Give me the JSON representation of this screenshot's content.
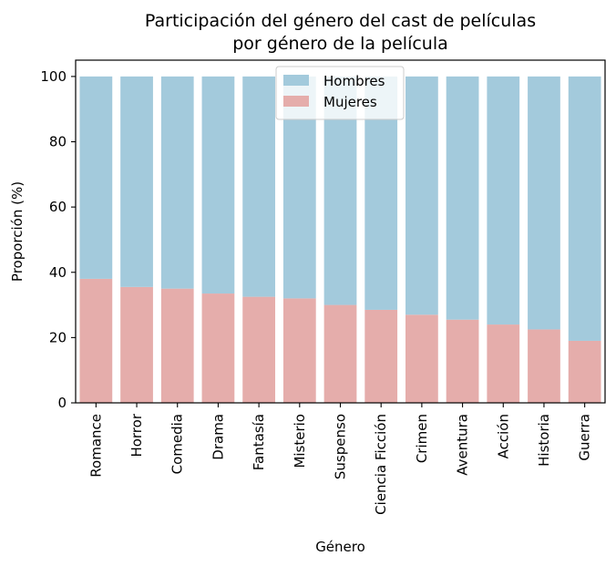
{
  "chart_data": {
    "type": "bar",
    "stacked": true,
    "title_lines": [
      "Participación del género del cast de películas",
      "por género de la película"
    ],
    "xlabel": "Género",
    "ylabel": "Proporción (%)",
    "ylim": [
      0,
      105
    ],
    "yticks": [
      0,
      20,
      40,
      60,
      80,
      100
    ],
    "categories": [
      "Romance",
      "Horror",
      "Comedia",
      "Drama",
      "Fantasía",
      "Misterio",
      "Suspenso",
      "Ciencia Ficción",
      "Crimen",
      "Aventura",
      "Acción",
      "Historia",
      "Guerra"
    ],
    "series": [
      {
        "name": "Mujeres",
        "color": "#e5adab",
        "values": [
          38,
          35.5,
          35,
          33.5,
          32.5,
          32,
          30,
          28.5,
          27,
          25.5,
          24,
          22.5,
          19
        ]
      },
      {
        "name": "Hombres",
        "color": "#a3cadc",
        "values": [
          62,
          64.5,
          65,
          66.5,
          67.5,
          68,
          70,
          71.5,
          73,
          74.5,
          76,
          77.5,
          81
        ]
      }
    ],
    "legend": {
      "position": "top-center",
      "order": [
        "Hombres",
        "Mujeres"
      ]
    },
    "grid": false
  }
}
